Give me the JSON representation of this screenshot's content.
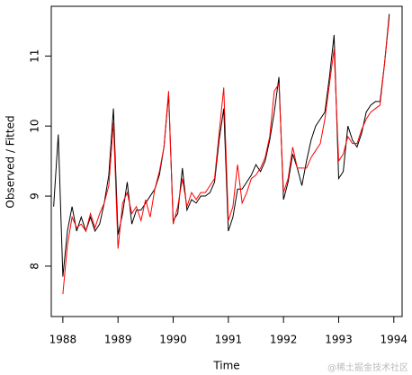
{
  "chart_data": {
    "type": "line",
    "xlabel": "Time",
    "ylabel": "Observed / Fitted",
    "x": [
      1987.833,
      1987.917,
      1988,
      1988.083,
      1988.167,
      1988.25,
      1988.333,
      1988.417,
      1988.5,
      1988.583,
      1988.667,
      1988.75,
      1988.833,
      1988.917,
      1989,
      1989.083,
      1989.167,
      1989.25,
      1989.333,
      1989.417,
      1989.5,
      1989.583,
      1989.667,
      1989.75,
      1989.833,
      1989.917,
      1990,
      1990.083,
      1990.167,
      1990.25,
      1990.333,
      1990.417,
      1990.5,
      1990.583,
      1990.667,
      1990.75,
      1990.833,
      1990.917,
      1991,
      1991.083,
      1991.167,
      1991.25,
      1991.333,
      1991.417,
      1991.5,
      1991.583,
      1991.667,
      1991.75,
      1991.833,
      1991.917,
      1992,
      1992.083,
      1992.167,
      1992.25,
      1992.333,
      1992.417,
      1992.5,
      1992.583,
      1992.667,
      1992.75,
      1992.833,
      1992.917,
      1993,
      1993.083,
      1993.167,
      1993.25,
      1993.333,
      1993.417,
      1993.5,
      1993.583,
      1993.667,
      1993.75,
      1993.833,
      1993.917
    ],
    "series": [
      {
        "name": "Observed",
        "color": "#000000",
        "values": [
          8.85,
          9.88,
          7.85,
          8.5,
          8.85,
          8.5,
          8.7,
          8.5,
          8.7,
          8.5,
          8.6,
          8.9,
          9.3,
          10.25,
          8.45,
          8.75,
          9.2,
          8.6,
          8.8,
          8.8,
          8.9,
          9.0,
          9.1,
          9.3,
          9.7,
          10.45,
          8.65,
          8.75,
          9.4,
          8.8,
          8.95,
          8.9,
          9.0,
          9.0,
          9.05,
          9.2,
          9.8,
          10.25,
          8.5,
          8.7,
          9.1,
          9.1,
          9.2,
          9.3,
          9.45,
          9.35,
          9.5,
          9.8,
          10.2,
          10.7,
          8.95,
          9.2,
          9.6,
          9.4,
          9.15,
          9.5,
          9.8,
          10.0,
          10.1,
          10.2,
          10.7,
          11.3,
          9.25,
          9.35,
          10.0,
          9.8,
          9.7,
          9.9,
          10.2,
          10.3,
          10.35,
          10.35,
          10.9,
          11.6
        ]
      },
      {
        "name": "Fitted",
        "color": "#ff0000",
        "values": [
          null,
          null,
          7.6,
          8.3,
          8.7,
          8.55,
          8.6,
          8.5,
          8.75,
          8.55,
          8.75,
          8.9,
          9.15,
          10.05,
          8.25,
          8.9,
          9.05,
          8.75,
          8.85,
          8.65,
          8.95,
          8.7,
          9.1,
          9.35,
          9.7,
          10.5,
          8.6,
          8.85,
          9.25,
          8.85,
          9.05,
          8.95,
          9.05,
          9.05,
          9.15,
          9.25,
          9.9,
          10.55,
          8.65,
          8.85,
          9.45,
          8.9,
          9.05,
          9.25,
          9.3,
          9.4,
          9.55,
          9.85,
          10.5,
          10.6,
          9.05,
          9.25,
          9.7,
          9.4,
          9.4,
          9.4,
          9.55,
          9.65,
          9.75,
          10.1,
          10.6,
          11.1,
          9.5,
          9.6,
          9.85,
          9.75,
          9.75,
          9.95,
          10.1,
          10.2,
          10.25,
          10.3,
          10.9,
          11.55
        ]
      }
    ],
    "xlim": [
      1987.79,
      1994.15
    ],
    "xticks": [
      1988,
      1989,
      1990,
      1991,
      1992,
      1993,
      1994
    ],
    "ylim": [
      7.28,
      11.71
    ],
    "yticks": [
      8,
      9,
      10,
      11
    ]
  },
  "watermark": "@稀土掘金技术社区"
}
